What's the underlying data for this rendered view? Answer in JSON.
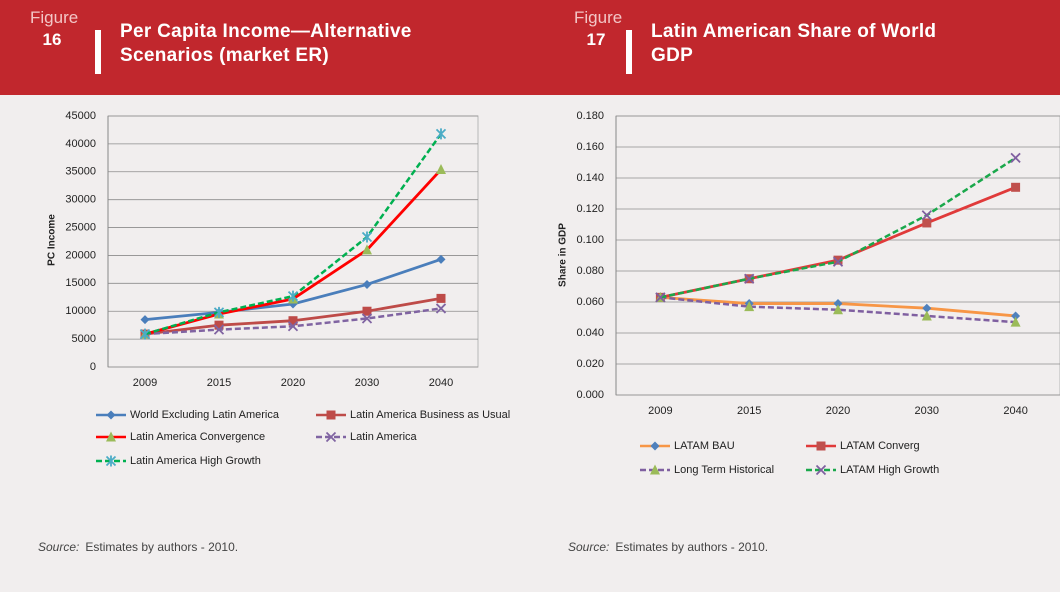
{
  "chart_data": [
    {
      "type": "line",
      "figure_label": "Figure",
      "figure_number": "16",
      "title": "Per Capita Income—Alternative Scenarios (market ER)",
      "ylabel": "PC Income",
      "categories": [
        "2009",
        "2015",
        "2020",
        "2030",
        "2040"
      ],
      "ylim": [
        0,
        45000
      ],
      "yticks": [
        0,
        5000,
        10000,
        15000,
        20000,
        25000,
        30000,
        35000,
        40000,
        45000
      ],
      "grid": true,
      "series": [
        {
          "name": "World Excluding Latin America",
          "color": "#4a7ebb",
          "marker": "diamond",
          "marker_color": "#4a7ebb",
          "dashed": false,
          "values": [
            8500,
            9800,
            11300,
            14800,
            19300
          ]
        },
        {
          "name": "Latin America Business as Usual",
          "color": "#be4b48",
          "marker": "square",
          "marker_color": "#be4b48",
          "dashed": false,
          "values": [
            5900,
            7500,
            8300,
            10000,
            12300
          ]
        },
        {
          "name": "Latin America Convergence",
          "color": "#ff0000",
          "marker": "triangle",
          "marker_color": "#9bbb59",
          "dashed": false,
          "values": [
            5900,
            9500,
            12200,
            21000,
            35400
          ]
        },
        {
          "name": "Latin America",
          "color": "#8064a2",
          "marker": "x",
          "marker_color": "#8064a2",
          "dashed": true,
          "values": [
            5900,
            6700,
            7300,
            8700,
            10500
          ]
        },
        {
          "name": "Latin America High Growth",
          "color": "#00b050",
          "marker": "star",
          "marker_color": "#4bacc6",
          "dashed": true,
          "values": [
            5900,
            9800,
            12700,
            23300,
            41800
          ]
        }
      ],
      "source_label": "Source:",
      "source_text": "Estimates by authors - 2010."
    },
    {
      "type": "line",
      "figure_label": "Figure",
      "figure_number": "17",
      "title": "Latin American Share of World GDP",
      "ylabel": "Share in GDP",
      "categories": [
        "2009",
        "2015",
        "2020",
        "2030",
        "2040"
      ],
      "ylim": [
        0,
        0.18
      ],
      "yticks": [
        {
          "value": 0,
          "label": "0.000"
        },
        {
          "value": 0.02,
          "label": "0.020"
        },
        {
          "value": 0.04,
          "label": "0.040"
        },
        {
          "value": 0.06,
          "label": "0.060"
        },
        {
          "value": 0.08,
          "label": "0.080"
        },
        {
          "value": 0.1,
          "label": "0.100"
        },
        {
          "value": 0.12,
          "label": "0.120"
        },
        {
          "value": 0.14,
          "label": "0.140"
        },
        {
          "value": 0.16,
          "label": "0.160"
        },
        {
          "value": 0.18,
          "label": "0.180"
        }
      ],
      "grid": true,
      "series": [
        {
          "name": "LATAM BAU",
          "color": "#f79646",
          "marker": "diamond",
          "marker_color": "#4f81bd",
          "dashed": false,
          "values": [
            0.063,
            0.059,
            0.059,
            0.056,
            0.051
          ]
        },
        {
          "name": "LATAM Converg",
          "color": "#e03a3a",
          "marker": "square",
          "marker_color": "#c0504d",
          "dashed": false,
          "values": [
            0.063,
            0.075,
            0.087,
            0.111,
            0.134
          ]
        },
        {
          "name": "Long Term Historical",
          "color": "#7f5fa0",
          "marker": "triangle",
          "marker_color": "#9bbb59",
          "dashed": true,
          "values": [
            0.063,
            0.057,
            0.055,
            0.051,
            0.047
          ]
        },
        {
          "name": "LATAM High Growth",
          "color": "#1aa84b",
          "marker": "x",
          "marker_color": "#7f5fa0",
          "dashed": true,
          "values": [
            0.063,
            0.075,
            0.086,
            0.116,
            0.153
          ]
        }
      ],
      "source_label": "Source:",
      "source_text": "Estimates by authors - 2010."
    }
  ]
}
